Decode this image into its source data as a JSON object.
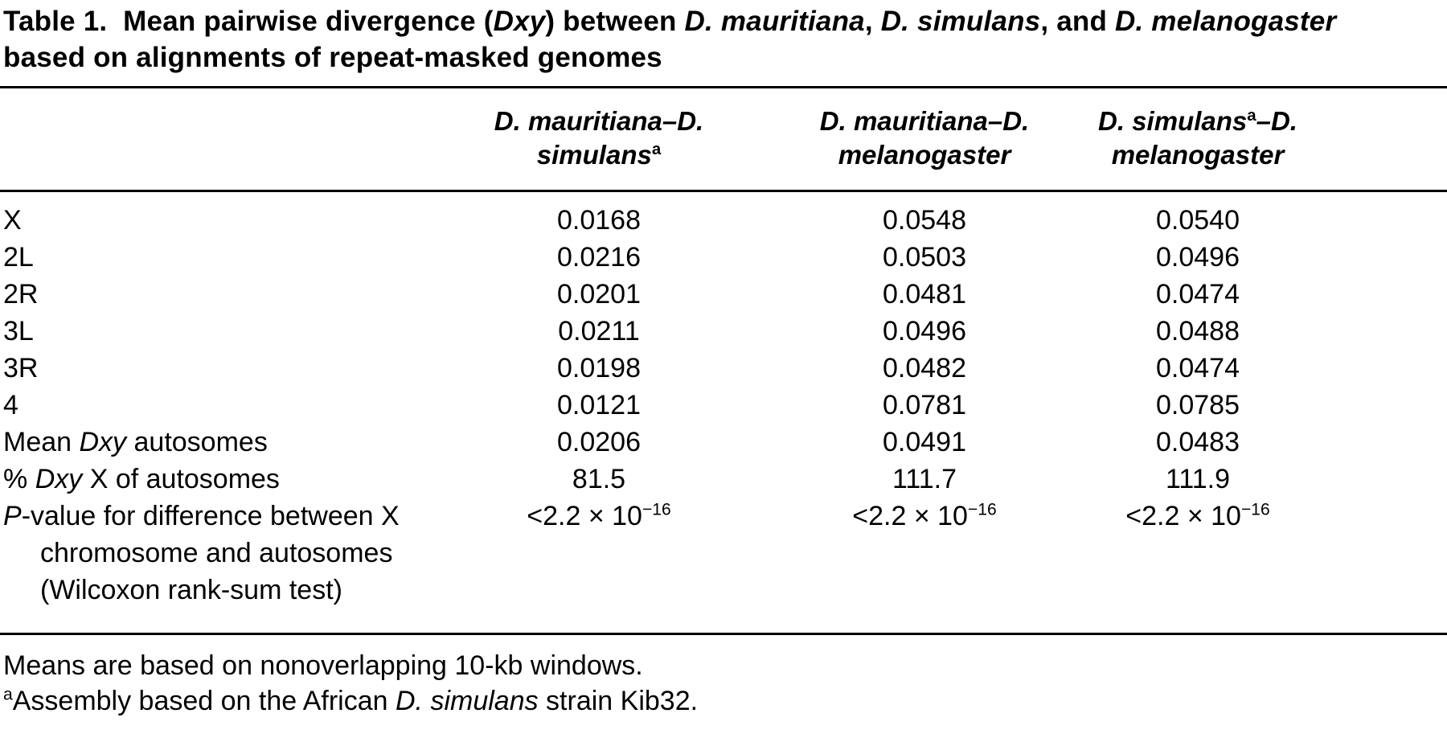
{
  "page": {
    "background": "#ffffff",
    "text_color": "#000000",
    "rule_color": "#000000"
  },
  "title": {
    "segments": [
      {
        "t": "Table 1.  Mean pairwise divergence ("
      },
      {
        "t": "Dxy",
        "i": true
      },
      {
        "t": ") between "
      },
      {
        "t": "D. mauritiana",
        "i": true
      },
      {
        "t": ", "
      },
      {
        "t": "D. simulans",
        "i": true
      },
      {
        "t": ", and "
      },
      {
        "t": "D. melanogaster",
        "i": true
      },
      {
        "t": "\nbased on alignments of repeat-masked genomes"
      }
    ]
  },
  "table": {
    "column_headers": [
      {
        "segments": [
          {
            "t": "D. mauritiana–D.\nsimulans",
            "i": true
          },
          {
            "t": "a",
            "sup": true
          }
        ]
      },
      {
        "segments": [
          {
            "t": "D. mauritiana–D.\nmelanogaster",
            "i": true
          }
        ]
      },
      {
        "segments": [
          {
            "t": "D. simulans",
            "i": true
          },
          {
            "t": "a",
            "sup": true
          },
          {
            "t": "–D.\nmelanogaster",
            "i": true
          }
        ]
      }
    ],
    "rows": [
      {
        "label": "X",
        "values": [
          "0.0168",
          "0.0548",
          "0.0540"
        ]
      },
      {
        "label": "2L",
        "values": [
          "0.0216",
          "0.0503",
          "0.0496"
        ]
      },
      {
        "label": "2R",
        "values": [
          "0.0201",
          "0.0481",
          "0.0474"
        ]
      },
      {
        "label": "3L",
        "values": [
          "0.0211",
          "0.0496",
          "0.0488"
        ]
      },
      {
        "label": "3R",
        "values": [
          "0.0198",
          "0.0482",
          "0.0474"
        ]
      },
      {
        "label": "4",
        "values": [
          "0.0121",
          "0.0781",
          "0.0785"
        ]
      },
      {
        "label": [
          {
            "t": "Mean "
          },
          {
            "t": "Dxy",
            "i": true
          },
          {
            "t": " autosomes"
          }
        ],
        "values": [
          "0.0206",
          "0.0491",
          "0.0483"
        ]
      },
      {
        "label": [
          {
            "t": "% "
          },
          {
            "t": "Dxy",
            "i": true
          },
          {
            "t": " X of autosomes"
          }
        ],
        "values": [
          "81.5",
          "111.7",
          "111.9"
        ]
      },
      {
        "label": [
          {
            "t": "P",
            "i": true
          },
          {
            "t": "-value for difference between X\nchromosome and autosomes\n(Wilcoxon rank-sum test)"
          }
        ],
        "values": [
          [
            {
              "t": "<2.2 × 10"
            },
            {
              "t": "−16",
              "sup": true
            }
          ],
          [
            {
              "t": "<2.2 × 10"
            },
            {
              "t": "−16",
              "sup": true
            }
          ],
          [
            {
              "t": "<2.2 × 10"
            },
            {
              "t": "−16",
              "sup": true
            }
          ]
        ]
      }
    ]
  },
  "footnotes": [
    {
      "segments": [
        {
          "t": "Means are based on nonoverlapping 10-kb windows."
        }
      ]
    },
    {
      "segments": [
        {
          "t": "a",
          "sup": true
        },
        {
          "t": "Assembly based on the African "
        },
        {
          "t": "D. simulans",
          "i": true
        },
        {
          "t": " strain Kib32."
        }
      ]
    }
  ]
}
